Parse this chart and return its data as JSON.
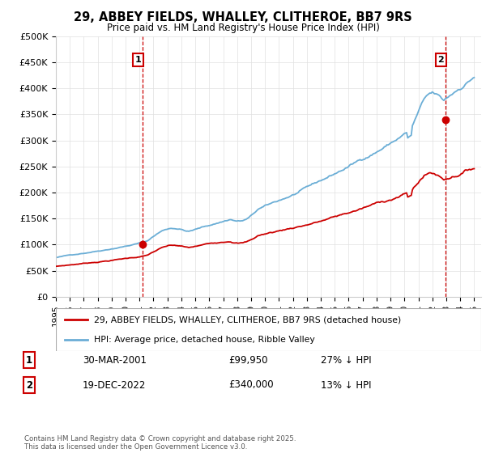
{
  "title_line1": "29, ABBEY FIELDS, WHALLEY, CLITHEROE, BB7 9RS",
  "title_line2": "Price paid vs. HM Land Registry's House Price Index (HPI)",
  "xlim_start": 1995.0,
  "xlim_end": 2025.5,
  "ylim_min": 0,
  "ylim_max": 500000,
  "yticks": [
    0,
    50000,
    100000,
    150000,
    200000,
    250000,
    300000,
    350000,
    400000,
    450000,
    500000
  ],
  "ytick_labels": [
    "£0",
    "£50K",
    "£100K",
    "£150K",
    "£200K",
    "£250K",
    "£300K",
    "£350K",
    "£400K",
    "£450K",
    "£500K"
  ],
  "hpi_color": "#6baed6",
  "price_color": "#cc0000",
  "vline_color": "#cc0000",
  "grid_color": "#e0e0e0",
  "transaction1_x": 2001.24,
  "transaction1_y": 99950,
  "transaction1_label": "1",
  "transaction2_x": 2022.96,
  "transaction2_y": 340000,
  "transaction2_label": "2",
  "legend_entry1": "29, ABBEY FIELDS, WHALLEY, CLITHEROE, BB7 9RS (detached house)",
  "legend_entry2": "HPI: Average price, detached house, Ribble Valley",
  "table_row1_num": "1",
  "table_row1_date": "30-MAR-2001",
  "table_row1_price": "£99,950",
  "table_row1_hpi": "27% ↓ HPI",
  "table_row2_num": "2",
  "table_row2_date": "19-DEC-2022",
  "table_row2_price": "£340,000",
  "table_row2_hpi": "13% ↓ HPI",
  "footer": "Contains HM Land Registry data © Crown copyright and database right 2025.\nThis data is licensed under the Open Government Licence v3.0.",
  "bg_color": "#ffffff"
}
